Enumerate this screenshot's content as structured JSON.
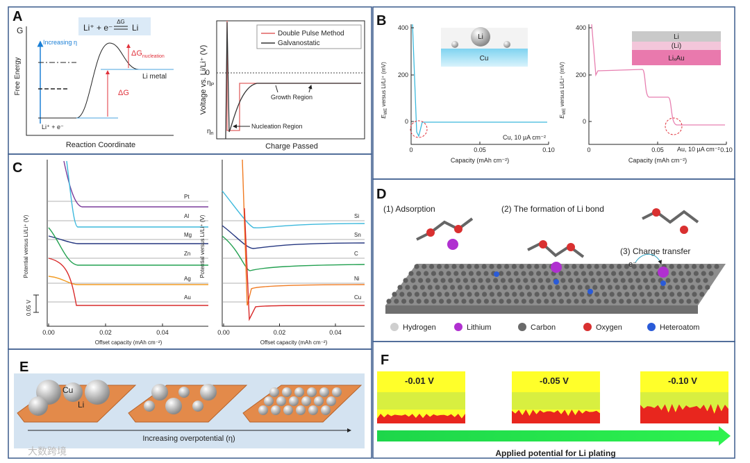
{
  "panels": {
    "a": {
      "label": "A",
      "left": {
        "g": "G",
        "reaction_lhs": "Li⁺ + e⁻",
        "reaction_dg": "ΔG",
        "reaction_rhs": "Li",
        "increasing": "Increasing η",
        "dg_nuc": "ΔG",
        "dg_nuc_sub": "nucleation",
        "li_metal": "Li metal",
        "dg": "ΔG",
        "start": "Li⁺ + e⁻",
        "y_label": "Free Energy",
        "x_label": "Reaction Coordinate"
      },
      "right": {
        "y_label": "Voltage vs. Li/Li⁺ (V)",
        "zero": "0",
        "eta_p": "η",
        "eta_p_sub": "P",
        "eta_n": "η",
        "eta_n_sub": "n",
        "legend": [
          "Double Pulse Method",
          "Galvanostatic"
        ],
        "growth": "Growth Region",
        "nucleation": "Nucleation Region",
        "x_label": "Charge Passed"
      }
    },
    "b": {
      "label": "B",
      "y_label_e": "E",
      "y_label_sub": "WE",
      "y_label_rest": " versus Li/Li⁺ (mV)",
      "yticks": [
        "400",
        "200",
        "0"
      ],
      "xticks": [
        "0",
        "0.05",
        "0.10"
      ],
      "x_label": "Capacity (mAh cm⁻²)",
      "left": {
        "inset_li": "Li",
        "inset_cu": "Cu",
        "note": "Cu, 10 µA cm⁻²"
      },
      "right": {
        "inset_li": "Li",
        "inset_li2": "(Li)",
        "inset_au": "LiₓAu",
        "note": "Au, 10 µA cm⁻²"
      }
    },
    "c": {
      "label": "C",
      "y_label": "Potential versus Li/Li⁺ (V)",
      "xticks": [
        "0.00",
        "0.02",
        "0.04"
      ],
      "x_label": "Offset capacity (mAh cm⁻²)",
      "scale": "0.05 V",
      "left": [
        "Pt",
        "Al",
        "Mg",
        "Zn",
        "Ag",
        "Au"
      ],
      "right": [
        "Si",
        "Sn",
        "C",
        "Ni",
        "Cu"
      ]
    },
    "d": {
      "label": "D",
      "step1": "(1) Adsorption",
      "step2": "(2) The formation of Li bond",
      "step3": "(3) Charge transfer",
      "electron": "e⁻",
      "legend": [
        "Hydrogen",
        "Lithium",
        "Carbon",
        "Oxygen",
        "Heteroatom"
      ]
    },
    "e": {
      "label": "E",
      "cu": "Cu",
      "li": "Li",
      "caption": "Increasing overpotential (η)"
    },
    "f": {
      "label": "F",
      "potentials": [
        "-0.01 V",
        "-0.05 V",
        "-0.10 V"
      ],
      "caption": "Applied potential for Li plating"
    }
  },
  "watermark": "大数跨境"
}
